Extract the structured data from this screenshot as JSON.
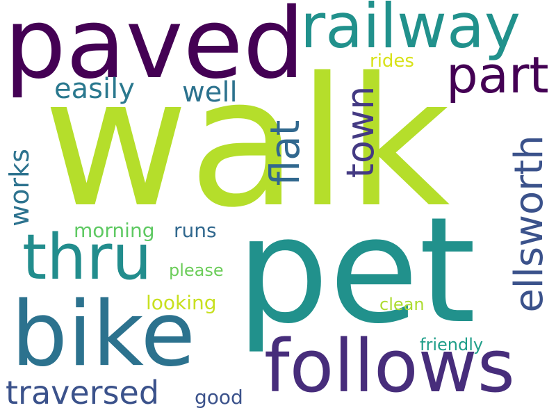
{
  "words": [
    {
      "text": "walk",
      "color": "#b5de2b"
    },
    {
      "text": "pet",
      "color": "#21918c"
    },
    {
      "text": "paved",
      "color": "#440154"
    },
    {
      "text": "railway",
      "color": "#21918c"
    },
    {
      "text": "bike",
      "color": "#2c728e"
    },
    {
      "text": "follows",
      "color": "#472d7b"
    },
    {
      "text": "thru",
      "color": "#228d8d"
    },
    {
      "text": "ellsworth",
      "color": "#3b528b"
    },
    {
      "text": "part",
      "color": "#440154"
    },
    {
      "text": "town",
      "color": "#443a83"
    },
    {
      "text": "flat",
      "color": "#31688e"
    },
    {
      "text": "traversed",
      "color": "#3b528b"
    },
    {
      "text": "easily",
      "color": "#2a788e"
    },
    {
      "text": "well",
      "color": "#2c728e"
    },
    {
      "text": "works",
      "color": "#2c728e"
    },
    {
      "text": "morning",
      "color": "#5ec962"
    },
    {
      "text": "runs",
      "color": "#31688e"
    },
    {
      "text": "rides",
      "color": "#d8e219"
    },
    {
      "text": "please",
      "color": "#6ccd5a"
    },
    {
      "text": "looking",
      "color": "#c8e020"
    },
    {
      "text": "clean",
      "color": "#addc30"
    },
    {
      "text": "friendly",
      "color": "#1f9e89"
    },
    {
      "text": "good",
      "color": "#3b528b"
    }
  ]
}
